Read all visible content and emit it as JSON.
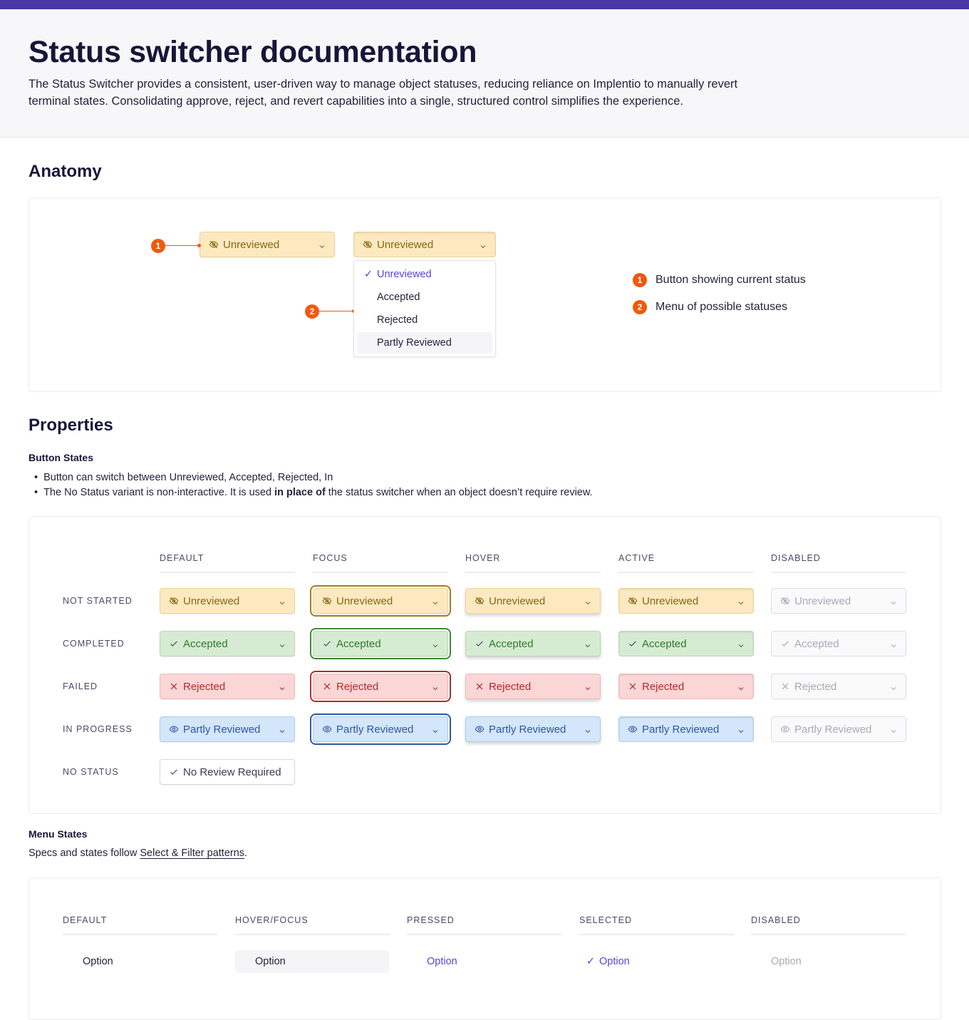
{
  "header": {
    "title": "Status switcher documentation",
    "description": "The Status Switcher provides a consistent, user-driven way to manage object statuses, reducing reliance on Implentio to manually revert terminal states. Consolidating approve, reject, and revert capabilities into a single, structured control simplifies the experience."
  },
  "colors": {
    "accent": "#4a37a6",
    "marker": "#f05a0e",
    "unreviewed_bg": "#fde9c0",
    "accepted_bg": "#d6ecd2",
    "rejected_bg": "#fbd6d6",
    "partly_bg": "#d4e6f9",
    "selected_text": "#5b43d6"
  },
  "anatomy": {
    "title": "Anatomy",
    "button_label": "Unreviewed",
    "open_button_label": "Unreviewed",
    "menu": [
      "Unreviewed",
      "Accepted",
      "Rejected",
      "Partly Reviewed"
    ],
    "selected": "Unreviewed",
    "hovered": "Partly Reviewed",
    "markers": [
      "1",
      "2"
    ],
    "legend": [
      {
        "num": "1",
        "text": "Button showing current status"
      },
      {
        "num": "2",
        "text": "Menu of possible statuses"
      }
    ]
  },
  "properties": {
    "title": "Properties",
    "button_states_title": "Button States",
    "bullets": [
      {
        "text": "Button can switch between Unreviewed, Accepted, Rejected, In"
      },
      {
        "pre": "The No Status variant is non-interactive. It is used ",
        "bold": "in place of",
        "post": " the status switcher when an object doesn’t require review."
      }
    ],
    "columns": [
      "DEFAULT",
      "FOCUS",
      "HOVER",
      "ACTIVE",
      "DISABLED"
    ],
    "rows": [
      {
        "label": "NOT STARTED",
        "status": "Unreviewed",
        "icon": "eye-off-icon"
      },
      {
        "label": "COMPLETED",
        "status": "Accepted",
        "icon": "check-icon"
      },
      {
        "label": "FAILED",
        "status": "Rejected",
        "icon": "x-icon"
      },
      {
        "label": "IN PROGRESS",
        "status": "Partly Reviewed",
        "icon": "eye-icon"
      },
      {
        "label": "NO STATUS",
        "status": "No Review Required",
        "icon": "check-icon"
      }
    ]
  },
  "menu_states": {
    "title": "Menu States",
    "text": "Specs and states follow ",
    "link": "Select & Filter patterns",
    "text_end": ".",
    "columns": [
      "DEFAULT",
      "HOVER/FOCUS",
      "PRESSED",
      "SELECTED",
      "DISABLED"
    ],
    "option_label": "Option"
  }
}
